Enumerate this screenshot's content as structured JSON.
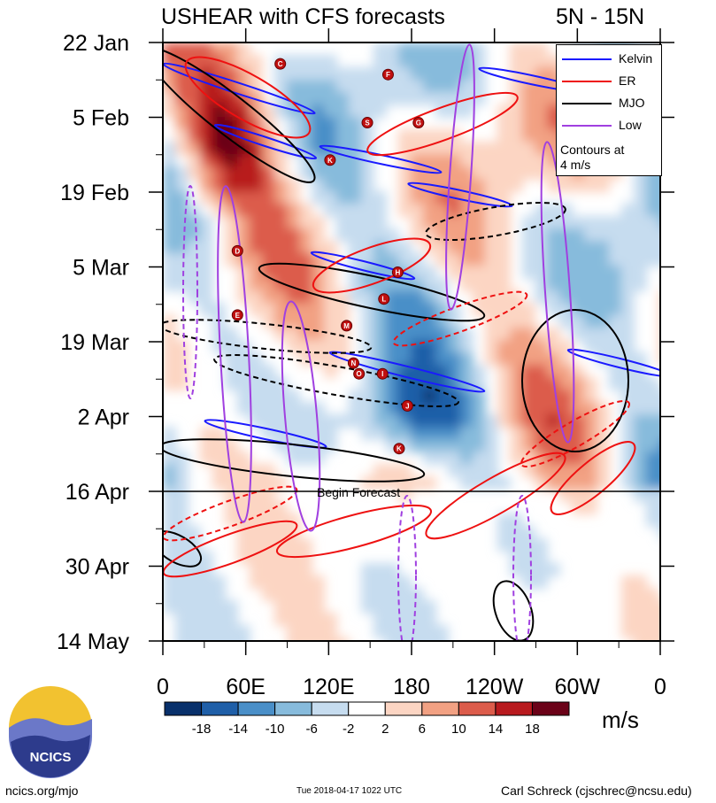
{
  "title": "USHEAR with CFS forecasts",
  "region": "5N - 15N",
  "legend": {
    "items": [
      {
        "label": "Kelvin",
        "color": "#1a1aff"
      },
      {
        "label": "ER",
        "color": "#ee1111"
      },
      {
        "label": "MJO",
        "color": "#000000"
      },
      {
        "label": "Low",
        "color": "#a040e0"
      }
    ],
    "note_line1": "Contours at",
    "note_line2": "4 m/s"
  },
  "colorbar": {
    "unit": "m/s",
    "colors": [
      "#08306b",
      "#1f5fa8",
      "#4a8fc8",
      "#87bbdc",
      "#c6dcef",
      "#ffffff",
      "#fcd5c3",
      "#f2a183",
      "#dc5c4b",
      "#b81a1e",
      "#6b0218"
    ],
    "tick_labels": [
      "-18",
      "-14",
      "-10",
      "-6",
      "-2",
      "2",
      "6",
      "10",
      "14",
      "18"
    ]
  },
  "footer": {
    "left": "ncics.org/mjo",
    "center": "Tue 2018-04-17 1022 UTC",
    "right": "Carl Schreck (cjschrec@ncsu.edu)",
    "logo_text": "NCICS"
  },
  "chart_data": {
    "type": "heatmap",
    "title": "USHEAR with CFS forecasts",
    "subtitle": "5N - 15N",
    "x_tick_labels": [
      "0",
      "60E",
      "120E",
      "180",
      "120W",
      "60W",
      "0"
    ],
    "y_tick_labels": [
      "22 Jan",
      "5 Feb",
      "19 Feb",
      "5 Mar",
      "19 Mar",
      "2 Apr",
      "16 Apr",
      "30 Apr",
      "14 May"
    ],
    "xlim": [
      0,
      360
    ],
    "ylim": [
      "2018-01-22",
      "2018-05-14"
    ],
    "forecast_start": "2018-04-16",
    "forecast_label": "Begin Forecast",
    "contour_interval": "4 m/s",
    "series": [
      {
        "name": "Kelvin"
      },
      {
        "name": "ER"
      },
      {
        "name": "MJO"
      },
      {
        "name": "Low"
      }
    ],
    "storm_markers": [
      {
        "letter": "C",
        "lon": 85,
        "date": "2018-01-26"
      },
      {
        "letter": "F",
        "lon": 163,
        "date": "2018-01-28"
      },
      {
        "letter": "S",
        "lon": 148,
        "date": "2018-02-06"
      },
      {
        "letter": "G",
        "lon": 185,
        "date": "2018-02-06"
      },
      {
        "letter": "K",
        "lon": 121,
        "date": "2018-02-13"
      },
      {
        "letter": "D",
        "lon": 54,
        "date": "2018-03-02"
      },
      {
        "letter": "H",
        "lon": 170,
        "date": "2018-03-06"
      },
      {
        "letter": "L",
        "lon": 160,
        "date": "2018-03-11"
      },
      {
        "letter": "E",
        "lon": 54,
        "date": "2018-03-14"
      },
      {
        "letter": "M",
        "lon": 133,
        "date": "2018-03-16"
      },
      {
        "letter": "N",
        "lon": 138,
        "date": "2018-03-23"
      },
      {
        "letter": "O",
        "lon": 142,
        "date": "2018-03-25"
      },
      {
        "letter": "I",
        "lon": 159,
        "date": "2018-03-25"
      },
      {
        "letter": "J",
        "lon": 177,
        "date": "2018-03-31"
      },
      {
        "letter": "K",
        "lon": 171,
        "date": "2018-04-08"
      }
    ],
    "colorbar_unit": "m/s"
  }
}
